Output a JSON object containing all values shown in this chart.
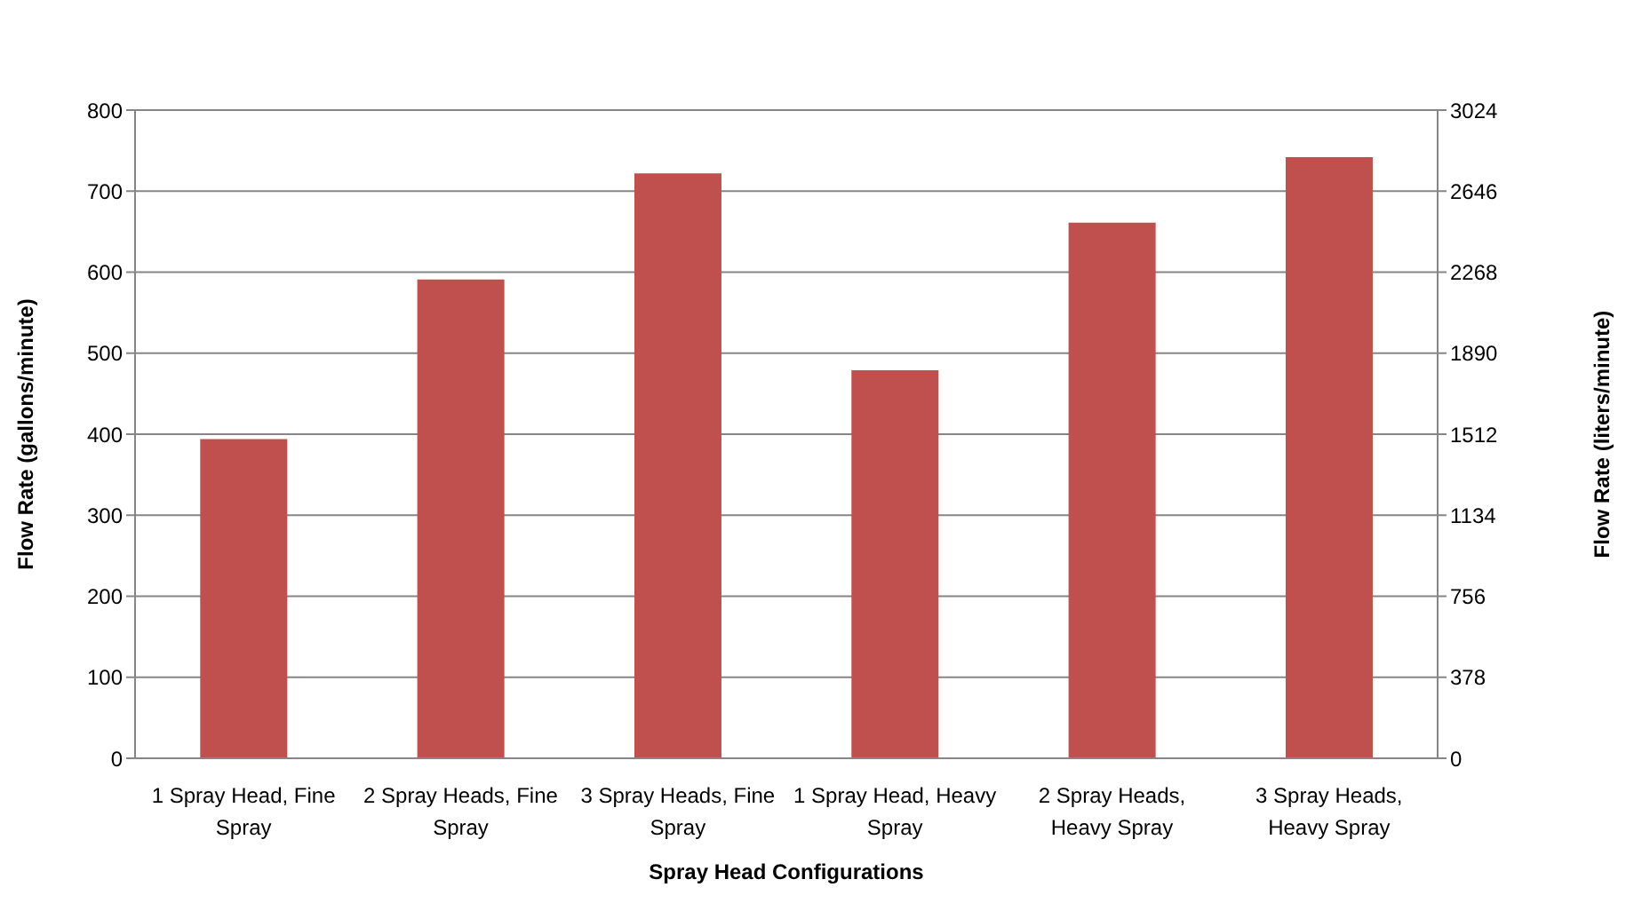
{
  "chart_data": {
    "type": "bar",
    "categories": [
      "1 Spray Head, Fine Spray",
      "2 Spray Heads, Fine Spray",
      "3 Spray Heads, Fine Spray",
      "1 Spray Head, Heavy Spray",
      "2 Spray Heads, Heavy Spray",
      "3 Spray Heads, Heavy Spray"
    ],
    "values": [
      394,
      591,
      722,
      479,
      661,
      742
    ],
    "color": "#c0504d",
    "xlabel": "Spray Head Configurations",
    "ylabel": "Flow Rate (gallons/minute)",
    "y2label": "Flow Rate (liters/minute)",
    "ylim": [
      0,
      800
    ],
    "yticks": [
      0,
      100,
      200,
      300,
      400,
      500,
      600,
      700,
      800
    ],
    "y2lim": [
      0,
      3024
    ],
    "y2ticks": [
      0,
      378,
      756,
      1134,
      1512,
      1890,
      2268,
      2646,
      3024
    ],
    "grid": "y"
  }
}
